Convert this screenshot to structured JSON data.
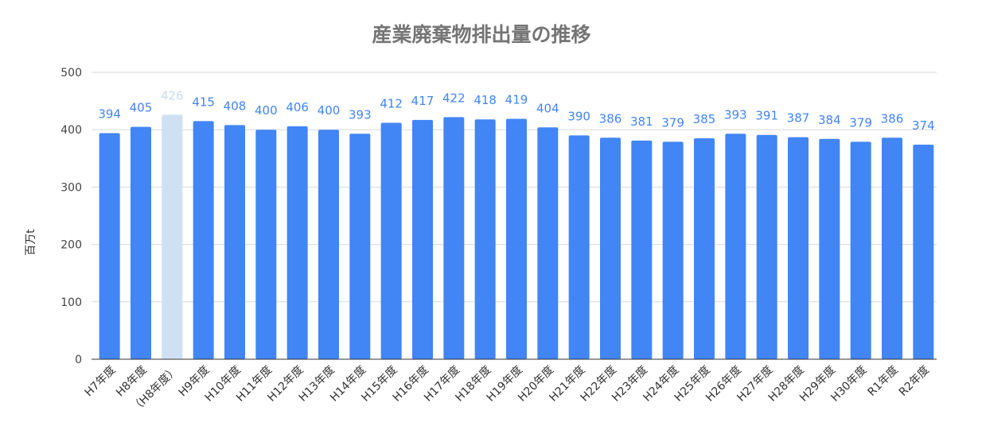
{
  "chart_data": {
    "type": "bar",
    "title": "産業廃棄物排出量の推移",
    "xlabel": "",
    "ylabel": "百万t",
    "ylim": [
      0,
      500
    ],
    "yticks": [
      0,
      100,
      200,
      300,
      400,
      500
    ],
    "grid": true,
    "categories": [
      "H7年度",
      "H8年度",
      "（H8年度）",
      "H9年度",
      "H10年度",
      "H11年度",
      "H12年度",
      "H13年度",
      "H14年度",
      "H15年度",
      "H16年度",
      "H17年度",
      "H18年度",
      "H19年度",
      "H20年度",
      "H21年度",
      "H22年度",
      "H23年度",
      "H24年度",
      "H25年度",
      "H26年度",
      "H27年度",
      "H28年度",
      "H29年度",
      "H30年度",
      "R1年度",
      "R2年度"
    ],
    "values": [
      394,
      405,
      426,
      415,
      408,
      400,
      406,
      400,
      393,
      412,
      417,
      422,
      418,
      419,
      404,
      390,
      386,
      381,
      379,
      385,
      393,
      391,
      387,
      384,
      379,
      386,
      374
    ],
    "highlight_index": 2
  },
  "colors": {
    "bar": "#4285f4",
    "bar_highlight": "#cfe0f3",
    "label": "#4285f4",
    "label_highlight": "#c7dbf2"
  }
}
